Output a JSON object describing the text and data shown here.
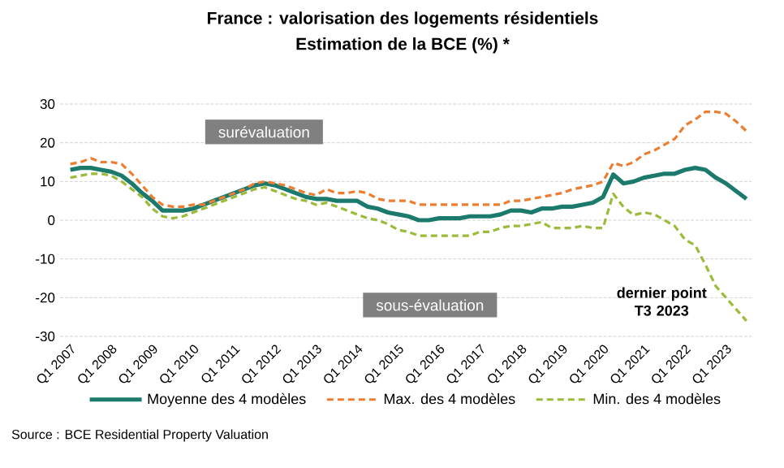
{
  "chart_data": {
    "type": "line",
    "title": "France : valorisation des logements résidentiels",
    "subtitle": "Estimation de la BCE (%) *",
    "categories": [
      "Q1 2007",
      null,
      null,
      null,
      "Q1 2008",
      null,
      null,
      null,
      "Q1 2009",
      null,
      null,
      null,
      "Q1 2010",
      null,
      null,
      null,
      "Q1 2011",
      null,
      null,
      null,
      "Q1 2012",
      null,
      null,
      null,
      "Q1 2013",
      null,
      null,
      null,
      "Q1 2014",
      null,
      null,
      null,
      "Q1 2015",
      null,
      null,
      null,
      "Q1 2016",
      null,
      null,
      null,
      "Q1 2017",
      null,
      null,
      null,
      "Q1 2018",
      null,
      null,
      null,
      "Q1 2019",
      null,
      null,
      null,
      "Q1 2020",
      null,
      null,
      null,
      "Q1 2021",
      null,
      null,
      null,
      "Q1 2022",
      null,
      null,
      null,
      "Q1 2023",
      null,
      null
    ],
    "series": [
      {
        "name": "Moyenne des 4 modèles",
        "color": "#1b7a6c",
        "line_style": "solid",
        "values": [
          13,
          13.5,
          13.5,
          13,
          12.5,
          11.5,
          9.5,
          7,
          5,
          2.5,
          2.5,
          2.5,
          3,
          4,
          5,
          6,
          7,
          8,
          9,
          9.5,
          9,
          8,
          7,
          6,
          5.5,
          5.5,
          5,
          5,
          5,
          3.5,
          3,
          2,
          1.5,
          1,
          0,
          0,
          0.5,
          0.5,
          0.5,
          1,
          1,
          1,
          1.5,
          2.5,
          2.5,
          2,
          3,
          3,
          3.5,
          3.5,
          4,
          4.5,
          6,
          11.8,
          9.5,
          10,
          11,
          11.5,
          12,
          12,
          13,
          13.5,
          13,
          11,
          9.5,
          7.5,
          5.5
        ]
      },
      {
        "name": "Max. des 4 modèles",
        "color": "#ed7d31",
        "line_style": "dashed",
        "values": [
          14.5,
          15,
          16,
          15,
          15,
          14.5,
          12,
          9,
          6,
          4,
          3.5,
          3.5,
          4,
          4,
          5,
          6,
          7,
          8,
          9.5,
          10,
          9.5,
          9,
          8,
          7,
          6.5,
          8,
          7,
          7,
          7.5,
          7,
          5.5,
          5,
          5,
          5,
          4,
          4,
          4,
          4,
          4,
          4,
          4,
          4,
          4,
          5,
          5,
          5.5,
          6,
          6.5,
          7,
          8,
          8.5,
          9,
          10,
          14.8,
          14,
          15,
          17,
          18,
          19.5,
          21,
          24.5,
          26,
          28,
          28,
          27.5,
          25.5,
          23
        ]
      },
      {
        "name": "Min. des 4 modèles",
        "color": "#9bbb3b",
        "line_style": "dashed",
        "values": [
          11,
          11.5,
          12,
          12,
          11.5,
          10,
          8,
          6,
          3,
          1,
          0.5,
          1,
          2,
          3,
          4,
          5,
          6,
          7,
          8,
          8.5,
          7.5,
          6.5,
          5.5,
          5,
          4,
          4.5,
          3.5,
          2.5,
          1.5,
          0.5,
          0,
          -1,
          -2.5,
          -3,
          -4,
          -4,
          -4,
          -4,
          -4,
          -4,
          -3,
          -3,
          -2,
          -1.5,
          -1.5,
          -1,
          -0.5,
          -2,
          -2,
          -2,
          -1.5,
          -2,
          -2,
          6.8,
          3.4,
          1.3,
          2,
          1.5,
          0,
          -1.5,
          -5,
          -6.5,
          -11.5,
          -17,
          -20,
          -23,
          -26
        ]
      }
    ],
    "ylim": [
      -30,
      30
    ],
    "yticks": [
      -30,
      -20,
      -10,
      0,
      10,
      20,
      30
    ],
    "grid": "y",
    "legend": "bottom",
    "marker": "none",
    "annotations": [
      "surévaluation",
      "sous-évaluation",
      "dernier point T3 2023",
      "Source : BCE Residential Property Valuation"
    ]
  }
}
